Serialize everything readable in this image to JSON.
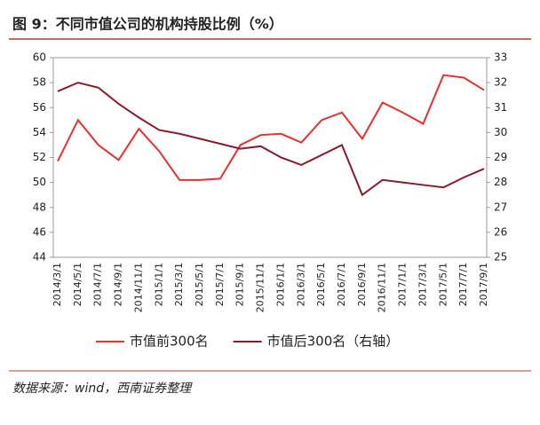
{
  "chart_data": {
    "type": "line",
    "title": "图 9：不同市值公司的机构持股比例（%）",
    "source": "数据来源：wind，西南证券整理",
    "categories": [
      "2014/3/1",
      "2014/5/1",
      "2014/7/1",
      "2014/9/1",
      "2014/11/1",
      "2015/1/1",
      "2015/3/1",
      "2015/5/1",
      "2015/7/1",
      "2015/9/1",
      "2015/11/1",
      "2016/1/1",
      "2016/3/1",
      "2016/5/1",
      "2016/7/1",
      "2016/9/1",
      "2016/11/1",
      "2017/1/1",
      "2017/3/1",
      "2017/5/1",
      "2017/7/1",
      "2017/9/1"
    ],
    "series": [
      {
        "name": "市值前300名",
        "color": "#e8312e",
        "axis": "y",
        "values": [
          51.7,
          55.0,
          53.0,
          51.8,
          54.3,
          52.5,
          50.2,
          50.2,
          50.3,
          53.0,
          53.8,
          53.9,
          53.2,
          55.0,
          55.6,
          53.5,
          56.4,
          55.6,
          54.7,
          58.6,
          58.4,
          57.4
        ]
      },
      {
        "name": "市值后300名（右轴）",
        "color": "#8c1a2e",
        "axis": "y2",
        "values": [
          31.65,
          32.0,
          31.8,
          31.15,
          30.6,
          30.1,
          29.95,
          29.75,
          29.55,
          29.35,
          29.45,
          29.0,
          28.7,
          29.1,
          29.5,
          27.5,
          28.1,
          28.0,
          27.9,
          27.8,
          28.2,
          28.55
        ]
      }
    ],
    "ylim": [
      44,
      60
    ],
    "yticks": [
      44,
      46,
      48,
      50,
      52,
      54,
      56,
      58,
      60
    ],
    "y2lim": [
      25,
      33
    ],
    "y2ticks": [
      25,
      26,
      27,
      28,
      29,
      30,
      31,
      32,
      33
    ]
  }
}
